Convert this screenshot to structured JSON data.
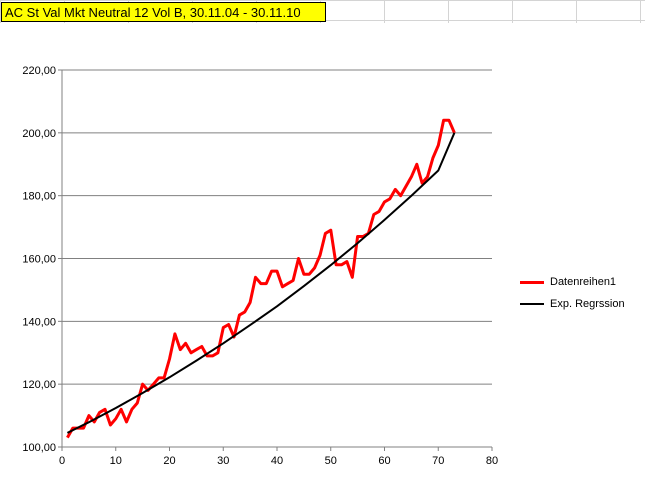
{
  "sheet": {
    "title_cell": "AC St Val Mkt Neutral 12 Vol B, 30.11.04 - 30.11.10"
  },
  "colors": {
    "series": "#ff0000",
    "regression": "#000000",
    "title_fill": "#ffff00"
  },
  "chart_data": {
    "type": "line",
    "xlim": [
      0,
      80
    ],
    "ylim": [
      100,
      220
    ],
    "x_ticks": [
      "0",
      "10",
      "20",
      "30",
      "40",
      "50",
      "60",
      "70",
      "80"
    ],
    "y_ticks": [
      "100,00",
      "120,00",
      "140,00",
      "160,00",
      "180,00",
      "200,00",
      "220,00"
    ],
    "grid": "horizontal",
    "legend_position": "right",
    "series": [
      {
        "name": "Datenreihen1",
        "color": "#ff0000",
        "x": [
          1,
          2,
          3,
          4,
          5,
          6,
          7,
          8,
          9,
          10,
          11,
          12,
          13,
          14,
          15,
          16,
          17,
          18,
          19,
          20,
          21,
          22,
          23,
          24,
          25,
          26,
          27,
          28,
          29,
          30,
          31,
          32,
          33,
          34,
          35,
          36,
          37,
          38,
          39,
          40,
          41,
          42,
          43,
          44,
          45,
          46,
          47,
          48,
          49,
          50,
          51,
          52,
          53,
          54,
          55,
          56,
          57,
          58,
          59,
          60,
          61,
          62,
          63,
          64,
          65,
          66,
          67,
          68,
          69,
          70,
          71,
          72,
          73
        ],
        "values": [
          103,
          106,
          106,
          106,
          110,
          108,
          111,
          112,
          107,
          109,
          112,
          108,
          112,
          114,
          120,
          118,
          120,
          122,
          122,
          128,
          136,
          131,
          133,
          130,
          131,
          132,
          129,
          129,
          130,
          138,
          139,
          135,
          142,
          143,
          146,
          154,
          152,
          152,
          156,
          156,
          151,
          152,
          153,
          160,
          155,
          155,
          157,
          161,
          168,
          169,
          158,
          158,
          159,
          154,
          167,
          167,
          168,
          174,
          175,
          178,
          179,
          182,
          180,
          183,
          186,
          190,
          184,
          186,
          192,
          196,
          204,
          204,
          200
        ]
      },
      {
        "name": "Exp. Regrssion",
        "color": "#000000",
        "x": [
          1,
          5,
          10,
          15,
          20,
          25,
          30,
          35,
          40,
          45,
          50,
          55,
          60,
          65,
          70,
          73
        ],
        "values": [
          104.5,
          107.9,
          112.4,
          117.2,
          122.2,
          127.5,
          133.0,
          138.8,
          144.8,
          151.2,
          157.9,
          164.9,
          172.3,
          180.0,
          188.0,
          200.0
        ]
      }
    ]
  }
}
